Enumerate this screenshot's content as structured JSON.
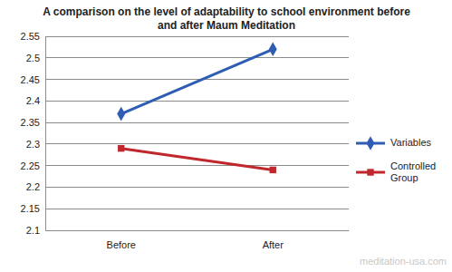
{
  "chart_data": {
    "type": "line",
    "title": "A comparison on the level of adaptability to school environment before and after Maum Meditation",
    "categories": [
      "Before",
      "After"
    ],
    "series": [
      {
        "name": "Variables",
        "color": "#2e5db3",
        "marker": "diamond",
        "line_style": "solid",
        "values": [
          2.37,
          2.52
        ]
      },
      {
        "name": "Controlled Group",
        "color": "#c0282d",
        "marker": "square",
        "line_style": "solid",
        "values": [
          2.29,
          2.24
        ]
      }
    ],
    "ylim": [
      2.1,
      2.55
    ],
    "yticks": [
      2.1,
      2.15,
      2.2,
      2.25,
      2.3,
      2.35,
      2.4,
      2.45,
      2.5,
      2.55
    ],
    "grid": true,
    "legend": "right",
    "annotations": [
      "meditation-usa.com"
    ]
  }
}
